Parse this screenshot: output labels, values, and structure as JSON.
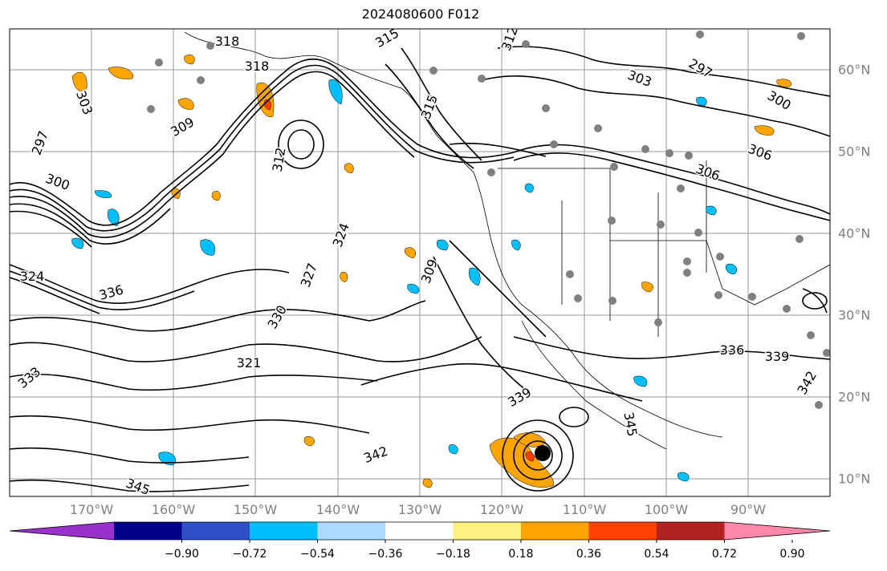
{
  "title": "2024080600 F012",
  "lon_labels": [
    "170°W",
    "160°W",
    "150°W",
    "140°W",
    "130°W",
    "120°W",
    "110°W",
    "100°W",
    "90°W"
  ],
  "lat_labels": [
    "60°N",
    "50°N",
    "40°N",
    "30°N",
    "20°N",
    "10°N"
  ],
  "contour_labels": [
    "318",
    "315",
    "309",
    "312",
    "297",
    "303",
    "300",
    "306",
    "324",
    "327",
    "336",
    "330",
    "321",
    "333",
    "339",
    "342",
    "345",
    "312",
    "315",
    "318",
    "303",
    "306",
    "309",
    "300",
    "297",
    "336",
    "339",
    "342",
    "345",
    "324"
  ],
  "colorbar": {
    "tick_labels": [
      "−0.90",
      "−0.72",
      "−0.54",
      "−0.36",
      "−0.18",
      "0.18",
      "0.36",
      "0.54",
      "0.72",
      "0.90"
    ],
    "colors": [
      "#9932cc",
      "#00008b",
      "#3050c8",
      "#00bfff",
      "#add8ff",
      "#ffffff",
      "#fff080",
      "#ffa500",
      "#ff4000",
      "#b22222",
      "#ff88aa"
    ]
  },
  "styles": {
    "axis_label_color": "#808080",
    "contour_color": "#000000",
    "marker_color": "#808080",
    "storm_marker_color": "#000000"
  }
}
